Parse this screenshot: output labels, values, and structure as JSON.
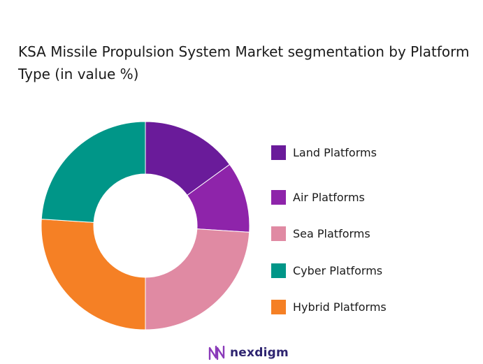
{
  "title": "KSA Missile Propulsion System Market segmentation by Platform Type (in value %)",
  "chart_data": {
    "type": "pie",
    "donut": true,
    "title": "KSA Missile Propulsion System Market segmentation by Platform Type (in value %)",
    "categories": [
      "Land Platforms",
      "Air Platforms",
      "Sea Platforms",
      "Cyber Platforms",
      "Hybrid Platforms"
    ],
    "values": [
      15,
      11,
      24,
      24,
      26
    ],
    "colors": [
      "#6a1b9a",
      "#8e24aa",
      "#e08aa3",
      "#009688",
      "#f58025"
    ],
    "legend_position": "right",
    "series_order": [
      0,
      1,
      2,
      4,
      3
    ]
  },
  "legend": {
    "items": [
      {
        "label": "Land Platforms",
        "color": "#6a1b9a"
      },
      {
        "label": "Air Platforms",
        "color": "#8e24aa"
      },
      {
        "label": "Sea Platforms",
        "color": "#e08aa3"
      },
      {
        "label": "Cyber Platforms",
        "color": "#009688"
      },
      {
        "label": "Hybrid Platforms",
        "color": "#f58025"
      }
    ]
  },
  "footer": {
    "brand": "nexdigm",
    "logo_icon": "nexdigm-logo-icon",
    "logo_color": "#8a3ab9"
  }
}
